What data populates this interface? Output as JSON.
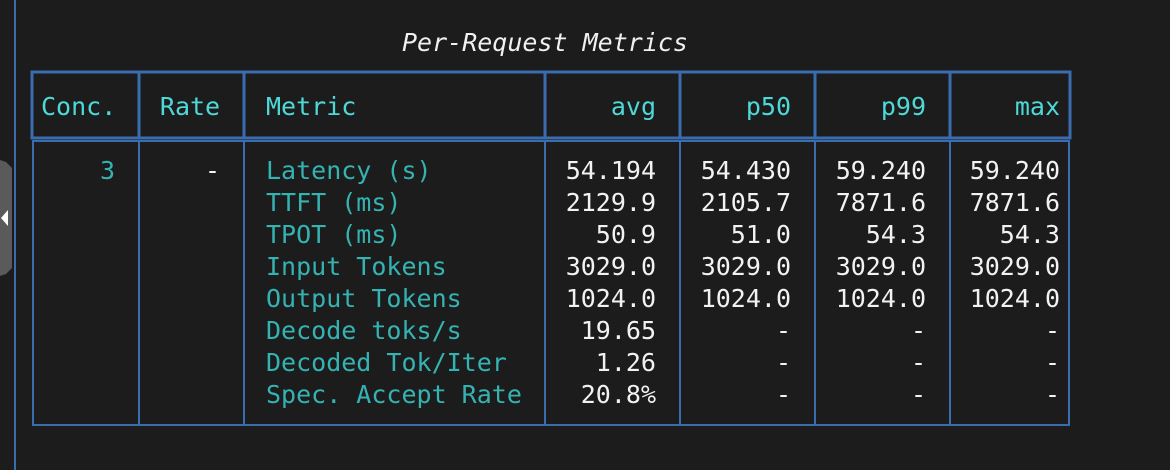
{
  "title": "Per-Request Metrics",
  "table": {
    "header": [
      "Conc.",
      "Rate",
      "Metric",
      "avg",
      "p50",
      "p99",
      "max"
    ],
    "conc": "3",
    "rate": "-",
    "rows": [
      [
        "Latency (s)",
        "54.194",
        "54.430",
        "59.240",
        "59.240"
      ],
      [
        "TTFT (ms)",
        "2129.9",
        "2105.7",
        "7871.6",
        "7871.6"
      ],
      [
        "TPOT (ms)",
        "50.9",
        "51.0",
        "54.3",
        "54.3"
      ],
      [
        "Input Tokens",
        "3029.0",
        "3029.0",
        "3029.0",
        "3029.0"
      ],
      [
        "Output Tokens",
        "1024.0",
        "1024.0",
        "1024.0",
        "1024.0"
      ],
      [
        "Decode toks/s",
        "19.65",
        "-",
        "-",
        "-"
      ],
      [
        "Decoded Tok/Iter",
        "1.26",
        "-",
        "-",
        "-"
      ],
      [
        "Spec. Accept Rate",
        "20.8%",
        "-",
        "-",
        "-"
      ]
    ]
  }
}
